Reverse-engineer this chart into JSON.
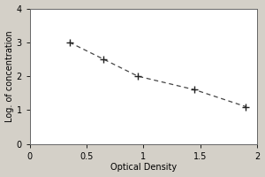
{
  "x_data": [
    0.35,
    0.65,
    0.95,
    1.45,
    1.9
  ],
  "y_data": [
    3.0,
    2.5,
    2.0,
    1.6,
    1.1
  ],
  "xlabel": "Optical Density",
  "ylabel": "Log. of concentration",
  "xlim": [
    0,
    2.0
  ],
  "ylim": [
    0,
    4
  ],
  "xticks": [
    0,
    0.5,
    1,
    1.5,
    2
  ],
  "yticks": [
    0,
    1,
    2,
    3,
    4
  ],
  "xtick_labels": [
    "0",
    "0.5",
    "1",
    "1.5",
    "2"
  ],
  "ytick_labels": [
    "0",
    "1",
    "2",
    "3",
    "4"
  ],
  "line_color": "#444444",
  "marker_color": "#222222",
  "figure_background": "#d4d0c8",
  "axes_background": "#ffffff",
  "spine_color": "#666666"
}
